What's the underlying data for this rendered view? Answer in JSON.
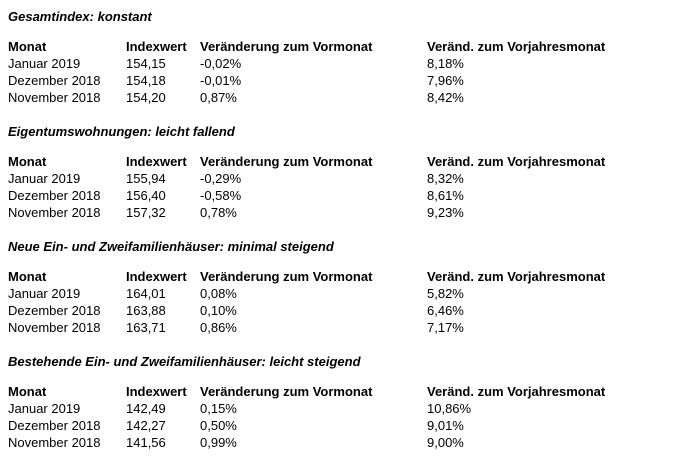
{
  "page": {
    "background_color": "#ffffff",
    "text_color": "#000000"
  },
  "columns": [
    "Monat",
    "Indexwert",
    "Veränderung zum Vormonat",
    "Veränd. zum Vorjahresmonat"
  ],
  "sections": [
    {
      "title": "Gesamtindex: konstant",
      "rows": [
        {
          "monat": "Januar 2019",
          "indexwert": "154,15",
          "veraenderung_vormonat": "-0,02%",
          "veraenderung_vorjahr": "8,18%"
        },
        {
          "monat": "Dezember 2018",
          "indexwert": "154,18",
          "veraenderung_vormonat": "-0,01%",
          "veraenderung_vorjahr": "7,96%"
        },
        {
          "monat": "November 2018",
          "indexwert": "154,20",
          "veraenderung_vormonat": "0,87%",
          "veraenderung_vorjahr": "8,42%"
        }
      ]
    },
    {
      "title": "Eigentumswohnungen: leicht fallend",
      "rows": [
        {
          "monat": "Januar 2019",
          "indexwert": "155,94",
          "veraenderung_vormonat": "-0,29%",
          "veraenderung_vorjahr": "8,32%"
        },
        {
          "monat": "Dezember 2018",
          "indexwert": "156,40",
          "veraenderung_vormonat": "-0,58%",
          "veraenderung_vorjahr": "8,61%"
        },
        {
          "monat": "November 2018",
          "indexwert": "157,32",
          "veraenderung_vormonat": "0,78%",
          "veraenderung_vorjahr": "9,23%"
        }
      ]
    },
    {
      "title": "Neue Ein- und Zweifamilienhäuser: minimal steigend",
      "rows": [
        {
          "monat": "Januar 2019",
          "indexwert": "164,01",
          "veraenderung_vormonat": "0,08%",
          "veraenderung_vorjahr": "5,82%"
        },
        {
          "monat": "Dezember 2018",
          "indexwert": "163,88",
          "veraenderung_vormonat": "0,10%",
          "veraenderung_vorjahr": "6,46%"
        },
        {
          "monat": "November 2018",
          "indexwert": "163,71",
          "veraenderung_vormonat": "0,86%",
          "veraenderung_vorjahr": "7,17%"
        }
      ]
    },
    {
      "title": "Bestehende Ein- und Zweifamilienhäuser: leicht steigend",
      "rows": [
        {
          "monat": "Januar 2019",
          "indexwert": "142,49",
          "veraenderung_vormonat": "0,15%",
          "veraenderung_vorjahr": "10,86%"
        },
        {
          "monat": "Dezember 2018",
          "indexwert": "142,27",
          "veraenderung_vormonat": "0,50%",
          "veraenderung_vorjahr": "9,01%"
        },
        {
          "monat": "November 2018",
          "indexwert": "141,56",
          "veraenderung_vormonat": "0,99%",
          "veraenderung_vorjahr": "9,00%"
        }
      ]
    }
  ]
}
